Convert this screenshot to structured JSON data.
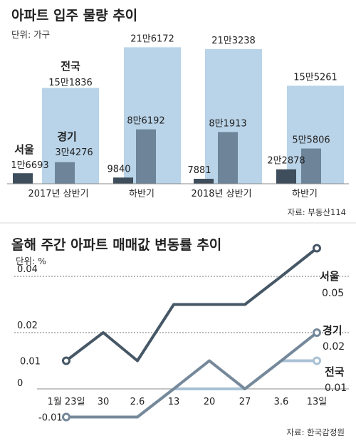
{
  "chart_data": [
    {
      "type": "bar",
      "title": "아파트 입주 물량 추이",
      "unit_label": "단위: 가구",
      "source": "자료: 부동산114",
      "categories": [
        "2017년 상반기",
        "하반기",
        "2018년 상반기",
        "하반기"
      ],
      "series": [
        {
          "name": "전국",
          "values": [
            151836,
            216172,
            213238,
            155261
          ],
          "labels": [
            "15만1836",
            "21만6172",
            "21만3238",
            "15만5261"
          ]
        },
        {
          "name": "경기",
          "values": [
            34276,
            86192,
            81913,
            55806
          ],
          "labels": [
            "3만4276",
            "8만6192",
            "8만1913",
            "5만5806"
          ]
        },
        {
          "name": "서울",
          "values": [
            16693,
            9840,
            7881,
            22878
          ],
          "labels": [
            "1만6693",
            "9840",
            "7881",
            "2만2878"
          ]
        }
      ],
      "colors": {
        "전국": "#b9d3e8",
        "경기": "#6d8499",
        "서울": "#3f4e5c"
      }
    },
    {
      "type": "line",
      "title": "올해 주간 아파트 매매값 변동률 추이",
      "unit_label": "단위: %",
      "source": "자료: 한국감정원",
      "x": [
        "1월 23일",
        "30",
        "2.6",
        "13",
        "20",
        "27",
        "3.6",
        "13일"
      ],
      "y_ticks": [
        "0.04",
        "0.02",
        "0.01",
        "0",
        "-0.01"
      ],
      "ylim": [
        -0.015,
        0.06
      ],
      "series": [
        {
          "name": "서울",
          "values": [
            0.01,
            0.02,
            0.01,
            0.03,
            0.03,
            0.03,
            0.04,
            0.05
          ],
          "end_label": "0.05"
        },
        {
          "name": "경기",
          "values": [
            -0.01,
            -0.01,
            -0.01,
            0.0,
            0.01,
            0.0,
            0.01,
            0.02
          ],
          "end_label": "0.02"
        },
        {
          "name": "전국",
          "values": [
            -0.01,
            -0.01,
            -0.01,
            0.0,
            0.0,
            0.0,
            0.01,
            0.01
          ],
          "end_label": "0.01"
        }
      ],
      "colors": {
        "서울": "#465766",
        "경기": "#76899b",
        "전국": "#a9c1d4"
      }
    }
  ]
}
